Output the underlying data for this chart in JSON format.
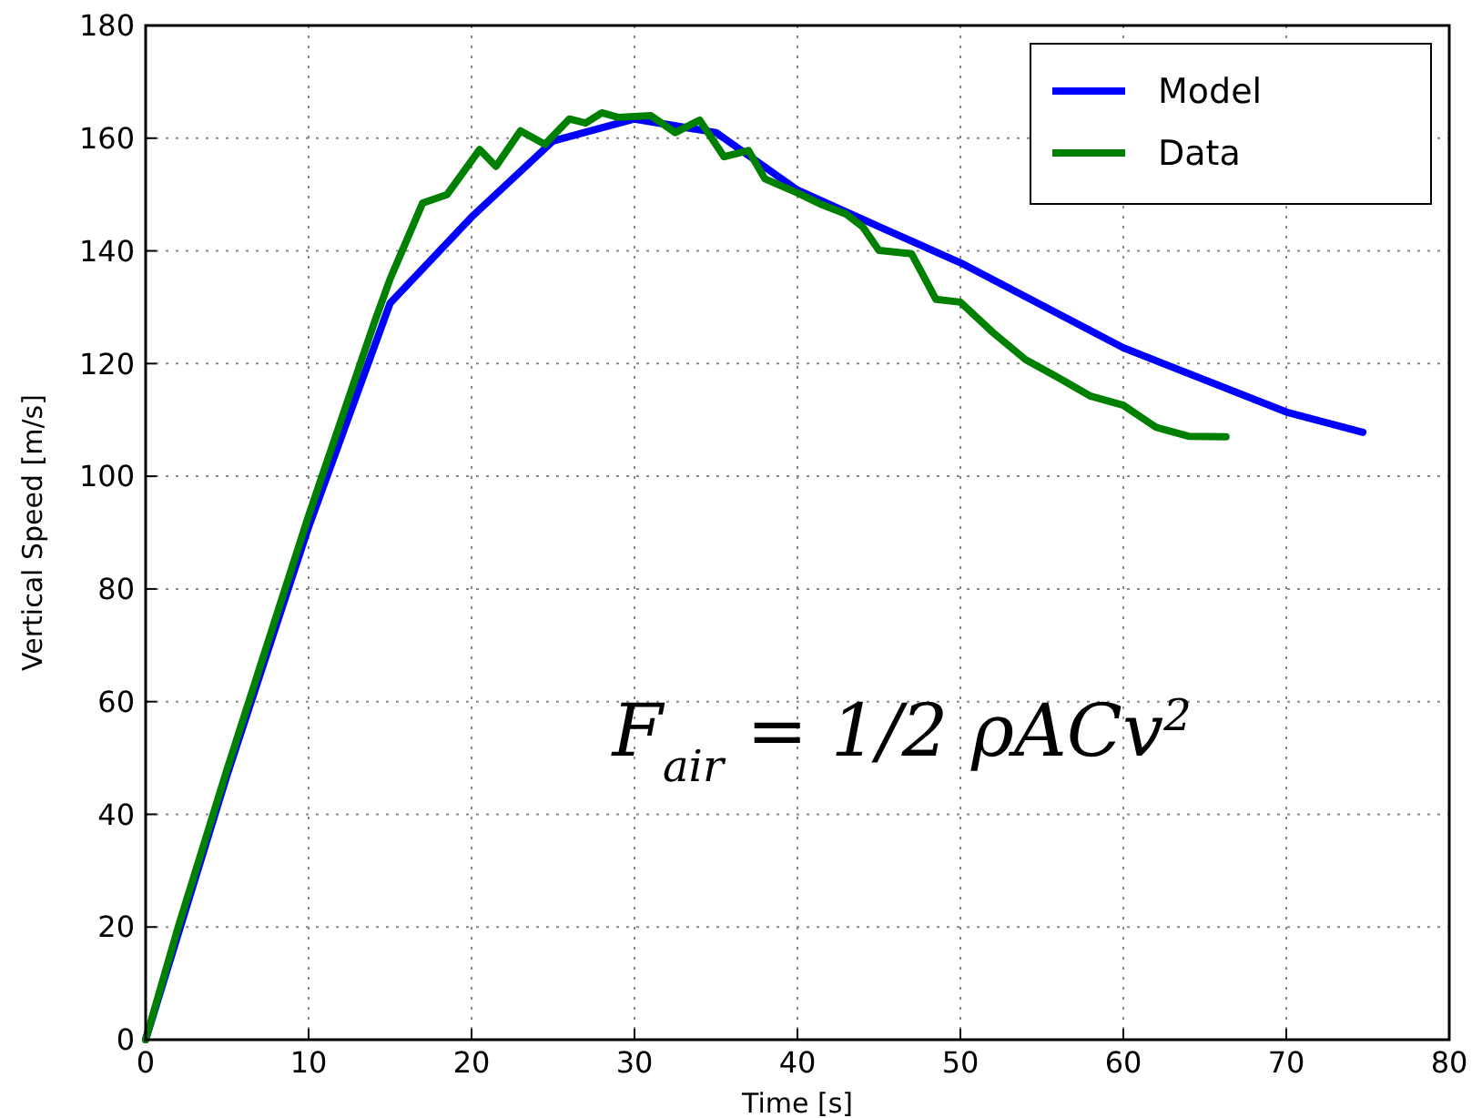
{
  "chart_data": {
    "type": "line",
    "xlabel": "Time [s]",
    "ylabel": "Vertical Speed [m/s]",
    "xlim": [
      0,
      80
    ],
    "ylim": [
      0,
      180
    ],
    "xticks": [
      0,
      10,
      20,
      30,
      40,
      50,
      60,
      70,
      80
    ],
    "yticks": [
      0,
      20,
      40,
      60,
      80,
      100,
      120,
      140,
      160,
      180
    ],
    "grid": true,
    "legend": "top right",
    "line_style": "solid",
    "annotations": [
      "F$_{air}$ = 1/2 ρACv$^{2}$"
    ],
    "series": [
      {
        "name": "Model",
        "color": "#0000ff",
        "x": [
          0,
          5,
          10,
          15,
          20,
          25,
          30,
          35,
          40,
          45,
          50,
          60,
          70,
          74.7
        ],
        "values": [
          0,
          47,
          91,
          130.7,
          146,
          159.5,
          163.4,
          161,
          150.8,
          144.3,
          137.9,
          122.8,
          111.4,
          107.8
        ]
      },
      {
        "name": "Data",
        "color": "#008000",
        "x": [
          0,
          2,
          5,
          8,
          10,
          12,
          14,
          15,
          17,
          18.5,
          20.5,
          21.5,
          23,
          24.5,
          26,
          27,
          28,
          29,
          31,
          32.5,
          34,
          35.5,
          37,
          38,
          40,
          41.5,
          43,
          44,
          45,
          47,
          48.5,
          50,
          52,
          54,
          56,
          58,
          60,
          62,
          64,
          66.3
        ],
        "values": [
          0,
          20,
          48,
          75,
          93,
          110,
          127,
          135,
          148.5,
          150,
          158,
          155,
          161.3,
          158.9,
          163.4,
          162.7,
          164.5,
          163.7,
          164,
          161,
          163.2,
          156.7,
          157.8,
          152.8,
          150.3,
          148.2,
          146.5,
          144.3,
          140.1,
          139.5,
          131.4,
          130.9,
          125.5,
          120.7,
          117.5,
          114.2,
          112.6,
          108.7,
          107.1,
          107
        ]
      }
    ]
  }
}
